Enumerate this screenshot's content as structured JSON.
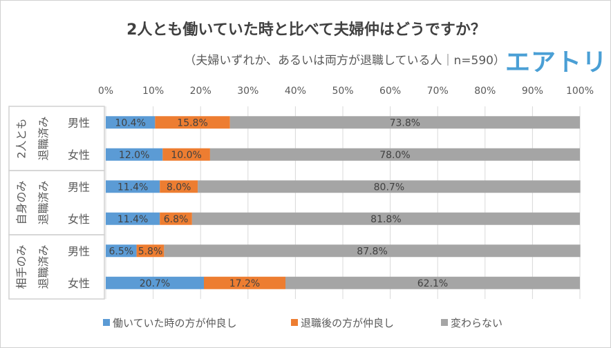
{
  "title": "2人とも働いていた時と比べて夫婦仲はどうですか？",
  "subtitle": "（夫婦いずれか、あるいは両方が退職している人｜n=590）",
  "logo_text": "エアトリ",
  "chart_data": {
    "type": "bar",
    "orientation": "horizontal",
    "stacked": "percent",
    "xlim": [
      0,
      100
    ],
    "x_ticks": [
      "0%",
      "10%",
      "20%",
      "30%",
      "40%",
      "50%",
      "60%",
      "70%",
      "80%",
      "90%",
      "100%"
    ],
    "grid": true,
    "legend_position": "bottom",
    "groups": [
      {
        "label_lines": [
          "2人とも",
          "退職済み"
        ],
        "categories": [
          "男性",
          "女性"
        ]
      },
      {
        "label_lines": [
          "自身のみ",
          "退職済み"
        ],
        "categories": [
          "男性",
          "女性"
        ]
      },
      {
        "label_lines": [
          "相手のみ",
          "退職済み"
        ],
        "categories": [
          "男性",
          "女性"
        ]
      }
    ],
    "series": [
      {
        "name": "働いていた時の方が仲良し",
        "color": "#5b9bd5",
        "values": [
          10.4,
          12.0,
          11.4,
          11.4,
          6.5,
          20.7
        ]
      },
      {
        "name": "退職後の方が仲良し",
        "color": "#ed7d31",
        "values": [
          15.8,
          10.0,
          8.0,
          6.8,
          5.8,
          17.2
        ]
      },
      {
        "name": "変わらない",
        "color": "#a5a5a5",
        "values": [
          73.8,
          78.0,
          80.7,
          81.8,
          87.8,
          62.1
        ]
      }
    ]
  }
}
